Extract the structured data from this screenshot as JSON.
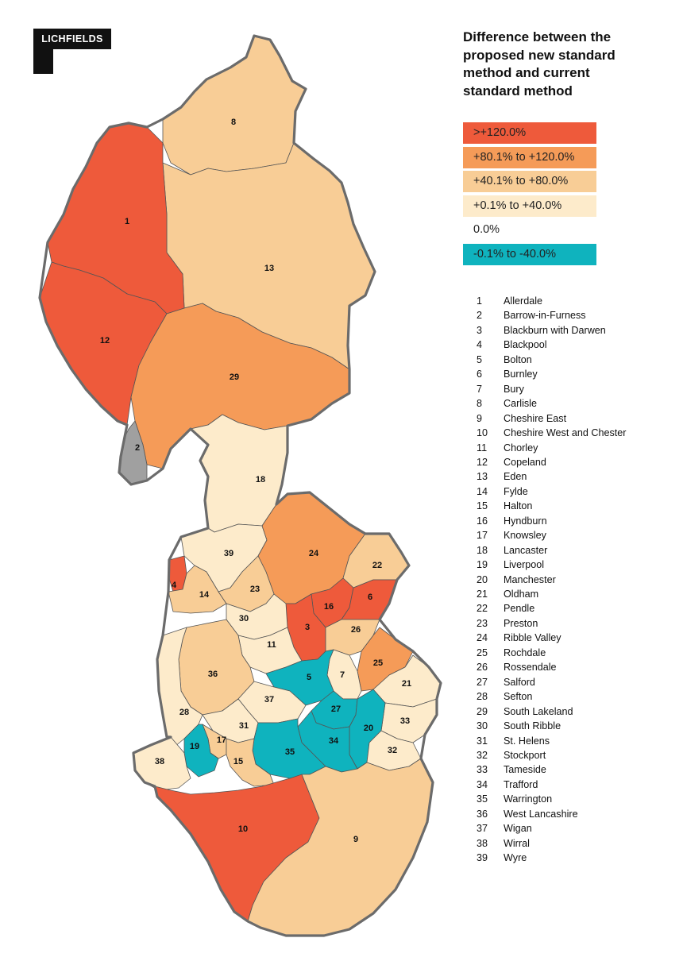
{
  "logo": {
    "text": "LICHFIELDS"
  },
  "legend": {
    "title": "Difference between the proposed new standard method and current standard method",
    "classes": [
      {
        "label": ">+120.0%",
        "color": "#ee5a3b"
      },
      {
        "label": "+80.1% to +120.0%",
        "color": "#f59b58"
      },
      {
        "label": "+40.1% to +80.0%",
        "color": "#f8cd96"
      },
      {
        "label": "+0.1% to +40.0%",
        "color": "#fdebcb"
      },
      {
        "label": "0.0%",
        "color": "#ffffff"
      },
      {
        "label": "-0.1% to -40.0%",
        "color": "#0fb3be"
      }
    ],
    "no_data_color": "#a0a0a0"
  },
  "areas": [
    {
      "id": "1",
      "name": "Allerdale",
      "class": 0
    },
    {
      "id": "2",
      "name": "Barrow-in-Furness",
      "class": -1
    },
    {
      "id": "3",
      "name": "Blackburn with Darwen",
      "class": 0
    },
    {
      "id": "4",
      "name": "Blackpool",
      "class": 0
    },
    {
      "id": "5",
      "name": "Bolton",
      "class": 5
    },
    {
      "id": "6",
      "name": "Burnley",
      "class": 0
    },
    {
      "id": "7",
      "name": "Bury",
      "class": 3
    },
    {
      "id": "8",
      "name": "Carlisle",
      "class": 2
    },
    {
      "id": "9",
      "name": "Cheshire East",
      "class": 2
    },
    {
      "id": "10",
      "name": "Cheshire West and Chester",
      "class": 0
    },
    {
      "id": "11",
      "name": "Chorley",
      "class": 3
    },
    {
      "id": "12",
      "name": "Copeland",
      "class": 0
    },
    {
      "id": "13",
      "name": "Eden",
      "class": 2
    },
    {
      "id": "14",
      "name": "Fylde",
      "class": 2
    },
    {
      "id": "15",
      "name": "Halton",
      "class": 2
    },
    {
      "id": "16",
      "name": "Hyndburn",
      "class": 0
    },
    {
      "id": "17",
      "name": "Knowsley",
      "class": 2
    },
    {
      "id": "18",
      "name": "Lancaster",
      "class": 3
    },
    {
      "id": "19",
      "name": "Liverpool",
      "class": 5
    },
    {
      "id": "20",
      "name": "Manchester",
      "class": 5
    },
    {
      "id": "21",
      "name": "Oldham",
      "class": 3
    },
    {
      "id": "22",
      "name": "Pendle",
      "class": 2
    },
    {
      "id": "23",
      "name": "Preston",
      "class": 2
    },
    {
      "id": "24",
      "name": "Ribble Valley",
      "class": 1
    },
    {
      "id": "25",
      "name": "Rochdale",
      "class": 1
    },
    {
      "id": "26",
      "name": "Rossendale",
      "class": 2
    },
    {
      "id": "27",
      "name": "Salford",
      "class": 5
    },
    {
      "id": "28",
      "name": "Sefton",
      "class": 3
    },
    {
      "id": "29",
      "name": "South Lakeland",
      "class": 1
    },
    {
      "id": "30",
      "name": "South Ribble",
      "class": 3
    },
    {
      "id": "31",
      "name": "St. Helens",
      "class": 3
    },
    {
      "id": "32",
      "name": "Stockport",
      "class": 3
    },
    {
      "id": "33",
      "name": "Tameside",
      "class": 3
    },
    {
      "id": "34",
      "name": "Trafford",
      "class": 5
    },
    {
      "id": "35",
      "name": "Warrington",
      "class": 5
    },
    {
      "id": "36",
      "name": "West Lancashire",
      "class": 2
    },
    {
      "id": "37",
      "name": "Wigan",
      "class": 3
    },
    {
      "id": "38",
      "name": "Wirral",
      "class": 3
    },
    {
      "id": "39",
      "name": "Wyre",
      "class": 3
    }
  ]
}
